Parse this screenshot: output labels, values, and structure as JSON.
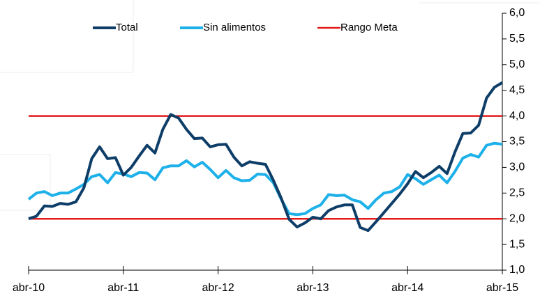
{
  "chart_data": {
    "type": "line",
    "categories": [
      "abr-10",
      null,
      null,
      null,
      null,
      null,
      null,
      null,
      null,
      null,
      null,
      null,
      "abr-11",
      null,
      null,
      null,
      null,
      null,
      null,
      null,
      null,
      null,
      null,
      null,
      "abr-12",
      null,
      null,
      null,
      null,
      null,
      null,
      null,
      null,
      null,
      null,
      null,
      "abr-13",
      null,
      null,
      null,
      null,
      null,
      null,
      null,
      null,
      null,
      null,
      null,
      "abr-14",
      null,
      null,
      null,
      null,
      null,
      null,
      null,
      null,
      null,
      null,
      null,
      "abr-15"
    ],
    "series": [
      {
        "name": "Total",
        "color": "#0e3e68",
        "values": [
          2.0,
          2.05,
          2.25,
          2.24,
          2.3,
          2.28,
          2.33,
          2.6,
          3.17,
          3.4,
          3.17,
          3.19,
          2.85,
          3.0,
          3.22,
          3.43,
          3.28,
          3.74,
          4.03,
          3.96,
          3.74,
          3.56,
          3.57,
          3.4,
          3.44,
          3.45,
          3.2,
          3.03,
          3.11,
          3.08,
          3.06,
          2.75,
          2.4,
          1.99,
          1.84,
          1.92,
          2.03,
          2.0,
          2.16,
          2.23,
          2.27,
          2.27,
          1.83,
          1.77,
          1.94,
          2.12,
          2.3,
          2.48,
          2.68,
          2.92,
          2.8,
          2.9,
          3.02,
          2.88,
          3.3,
          3.66,
          3.67,
          3.82,
          4.35,
          4.56,
          4.65
        ]
      },
      {
        "name": "Sin alimentos",
        "color": "#1eb1e9",
        "values": [
          2.38,
          2.5,
          2.53,
          2.45,
          2.5,
          2.5,
          2.58,
          2.67,
          2.82,
          2.86,
          2.7,
          2.9,
          2.87,
          2.82,
          2.9,
          2.89,
          2.76,
          2.99,
          3.03,
          3.03,
          3.13,
          3.01,
          3.1,
          2.96,
          2.8,
          2.94,
          2.8,
          2.74,
          2.75,
          2.87,
          2.86,
          2.7,
          2.38,
          2.1,
          2.08,
          2.1,
          2.2,
          2.27,
          2.47,
          2.45,
          2.46,
          2.37,
          2.33,
          2.2,
          2.37,
          2.5,
          2.53,
          2.62,
          2.86,
          2.78,
          2.67,
          2.76,
          2.85,
          2.7,
          2.92,
          3.18,
          3.25,
          3.2,
          3.43,
          3.47,
          3.45
        ]
      }
    ],
    "reference_lines": {
      "name": "Rango Meta",
      "color": "#e31b1b",
      "values": [
        2,
        4
      ]
    },
    "ylim": [
      1,
      6
    ],
    "yticks": [
      {
        "value": 1,
        "label": "1,0"
      },
      {
        "value": 1.5,
        "label": "1,5"
      },
      {
        "value": 2,
        "label": "2,0"
      },
      {
        "value": 2.5,
        "label": "2,5"
      },
      {
        "value": 3,
        "label": "3,0"
      },
      {
        "value": 3.5,
        "label": "3,5"
      },
      {
        "value": 4,
        "label": "4,0"
      },
      {
        "value": 4.5,
        "label": "4,5"
      },
      {
        "value": 5,
        "label": "5,0"
      },
      {
        "value": 5.5,
        "label": "5,5"
      },
      {
        "value": 6,
        "label": "6,0"
      }
    ],
    "y_axis_side": "right"
  }
}
